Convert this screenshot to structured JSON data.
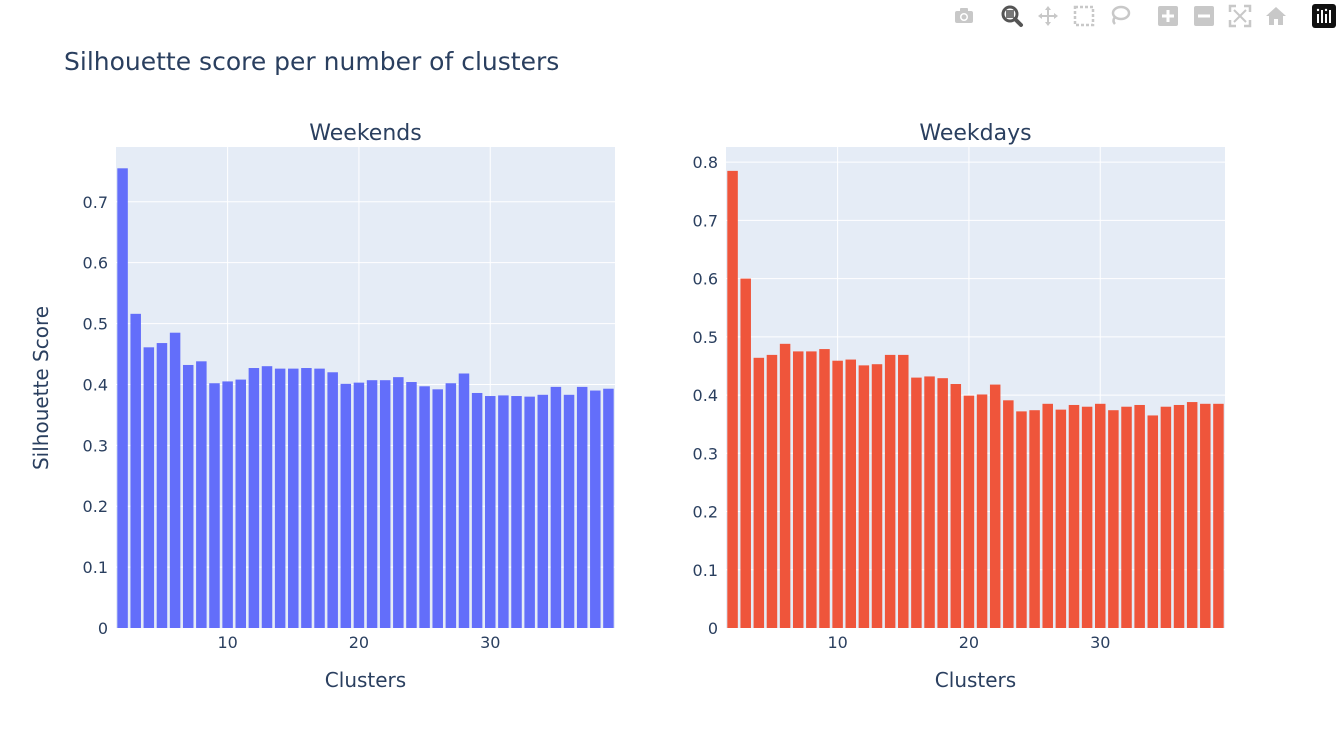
{
  "toolbar": {
    "items": [
      "camera-icon",
      "zoom-icon",
      "pan-icon",
      "box-select-icon",
      "lasso-select-icon",
      "zoom-in-icon",
      "zoom-out-icon",
      "autoscale-icon",
      "reset-axes-icon",
      "plotly-logo-icon"
    ],
    "active": "zoom-icon"
  },
  "chart_data": {
    "title": "Silhouette score per number of clusters",
    "ylabel": "Silhouette Score",
    "subplots": [
      {
        "title": "Weekends",
        "type": "bar",
        "color": "#636efa",
        "xlabel": "Clusters",
        "xlim": [
          1.5,
          39.5
        ],
        "ylim": [
          0,
          0.79
        ],
        "x_ticks": [
          10,
          20,
          30
        ],
        "y_ticks": [
          0,
          0.1,
          0.2,
          0.3,
          0.4,
          0.5,
          0.6,
          0.7
        ],
        "x": [
          2,
          3,
          4,
          5,
          6,
          7,
          8,
          9,
          10,
          11,
          12,
          13,
          14,
          15,
          16,
          17,
          18,
          19,
          20,
          21,
          22,
          23,
          24,
          25,
          26,
          27,
          28,
          29,
          30,
          31,
          32,
          33,
          34,
          35,
          36,
          37,
          38,
          39
        ],
        "values": [
          0.755,
          0.516,
          0.461,
          0.468,
          0.485,
          0.432,
          0.438,
          0.402,
          0.405,
          0.408,
          0.427,
          0.43,
          0.426,
          0.426,
          0.427,
          0.426,
          0.42,
          0.401,
          0.403,
          0.407,
          0.407,
          0.412,
          0.404,
          0.397,
          0.392,
          0.402,
          0.418,
          0.386,
          0.381,
          0.382,
          0.381,
          0.38,
          0.383,
          0.396,
          0.383,
          0.396,
          0.39,
          0.393
        ]
      },
      {
        "title": "Weekdays",
        "type": "bar",
        "color": "#ef553b",
        "xlabel": "Clusters",
        "xlim": [
          1.5,
          39.5
        ],
        "ylim": [
          0,
          0.826
        ],
        "x_ticks": [
          10,
          20,
          30
        ],
        "y_ticks": [
          0,
          0.1,
          0.2,
          0.3,
          0.4,
          0.5,
          0.6,
          0.7,
          0.8
        ],
        "x": [
          2,
          3,
          4,
          5,
          6,
          7,
          8,
          9,
          10,
          11,
          12,
          13,
          14,
          15,
          16,
          17,
          18,
          19,
          20,
          21,
          22,
          23,
          24,
          25,
          26,
          27,
          28,
          29,
          30,
          31,
          32,
          33,
          34,
          35,
          36,
          37,
          38,
          39
        ],
        "values": [
          0.785,
          0.6,
          0.464,
          0.469,
          0.488,
          0.475,
          0.475,
          0.479,
          0.459,
          0.461,
          0.451,
          0.453,
          0.469,
          0.469,
          0.43,
          0.432,
          0.429,
          0.419,
          0.399,
          0.401,
          0.418,
          0.391,
          0.372,
          0.374,
          0.385,
          0.375,
          0.383,
          0.38,
          0.385,
          0.374,
          0.38,
          0.383,
          0.365,
          0.38,
          0.383,
          0.388,
          0.385,
          0.385
        ]
      }
    ]
  }
}
